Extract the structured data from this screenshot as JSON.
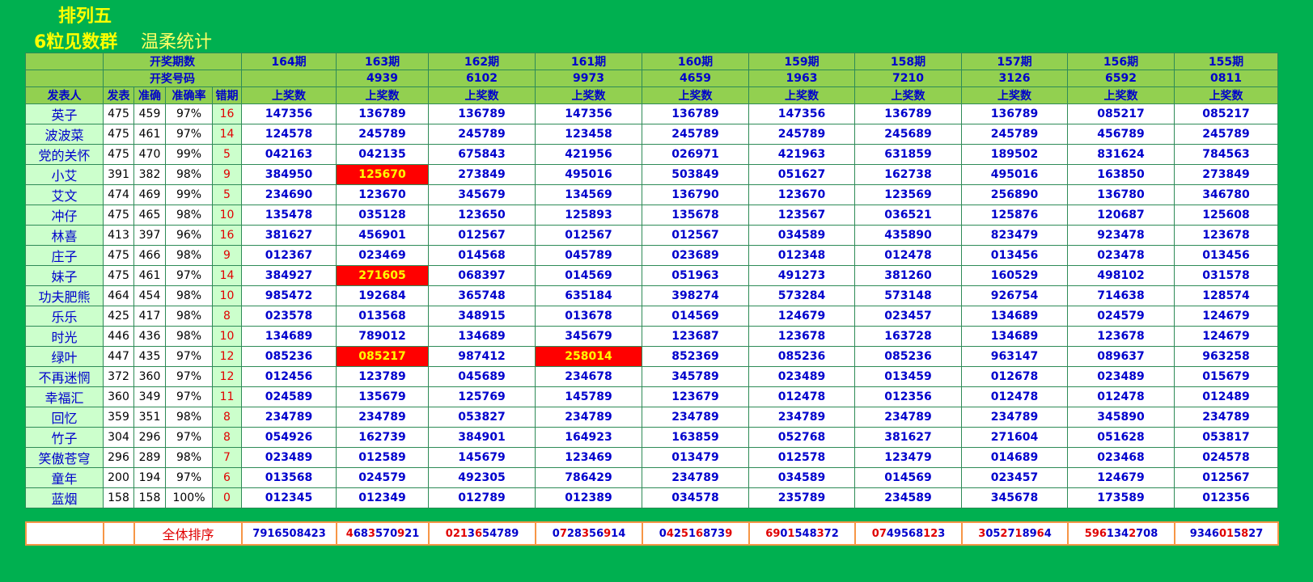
{
  "header": {
    "title": "排列五",
    "subtitle": "6粒见数群",
    "author": "温柔统计"
  },
  "table": {
    "labels": {
      "period_count": "开奖期数",
      "draw_number": "开奖号码",
      "prize_count": "上奖数"
    },
    "columns": [
      "发表人",
      "发表",
      "准确",
      "准确率",
      "错期"
    ],
    "periods": [
      "164期",
      "163期",
      "162期",
      "161期",
      "160期",
      "159期",
      "158期",
      "157期",
      "156期",
      "155期"
    ],
    "draws": [
      null,
      "4939",
      "6102",
      "9973",
      "4659",
      "1963",
      "7210",
      "3126",
      "6592",
      "0811"
    ],
    "rows": [
      {
        "name": "英子",
        "posts": 475,
        "correct": 459,
        "rate": "97%",
        "miss": 16,
        "picks": [
          "147356",
          "136789",
          "136789",
          "147356",
          "136789",
          "147356",
          "136789",
          "136789",
          "085217",
          "085217"
        ]
      },
      {
        "name": "波波菜",
        "posts": 475,
        "correct": 461,
        "rate": "97%",
        "miss": 14,
        "picks": [
          "124578",
          "245789",
          "245789",
          "123458",
          "245789",
          "245789",
          "245689",
          "245789",
          "456789",
          "245789"
        ]
      },
      {
        "name": "党的关怀",
        "posts": 475,
        "correct": 470,
        "rate": "99%",
        "miss": 5,
        "picks": [
          "042163",
          "042135",
          "675843",
          "421956",
          "026971",
          "421963",
          "631859",
          "189502",
          "831624",
          "784563"
        ]
      },
      {
        "name": "小艾",
        "posts": 391,
        "correct": 382,
        "rate": "98%",
        "miss": 9,
        "picks": [
          "384950",
          "125670",
          "273849",
          "495016",
          "503849",
          "051627",
          "162738",
          "495016",
          "163850",
          "273849"
        ]
      },
      {
        "name": "艾文",
        "posts": 474,
        "correct": 469,
        "rate": "99%",
        "miss": 5,
        "picks": [
          "234690",
          "123670",
          "345679",
          "134569",
          "136790",
          "123670",
          "123569",
          "256890",
          "136780",
          "346780"
        ]
      },
      {
        "name": "冲仔",
        "posts": 475,
        "correct": 465,
        "rate": "98%",
        "miss": 10,
        "picks": [
          "135478",
          "035128",
          "123650",
          "125893",
          "135678",
          "123567",
          "036521",
          "125876",
          "120687",
          "125608"
        ]
      },
      {
        "name": "林喜",
        "posts": 413,
        "correct": 397,
        "rate": "96%",
        "miss": 16,
        "picks": [
          "381627",
          "456901",
          "012567",
          "012567",
          "012567",
          "034589",
          "435890",
          "823479",
          "923478",
          "123678"
        ]
      },
      {
        "name": "庄子",
        "posts": 475,
        "correct": 466,
        "rate": "98%",
        "miss": 9,
        "picks": [
          "012367",
          "023469",
          "014568",
          "045789",
          "023689",
          "012348",
          "012478",
          "013456",
          "023478",
          "013456"
        ]
      },
      {
        "name": "妹子",
        "posts": 475,
        "correct": 461,
        "rate": "97%",
        "miss": 14,
        "picks": [
          "384927",
          "271605",
          "068397",
          "014569",
          "051963",
          "491273",
          "381260",
          "160529",
          "498102",
          "031578"
        ]
      },
      {
        "name": "功夫肥熊",
        "posts": 464,
        "correct": 454,
        "rate": "98%",
        "miss": 10,
        "picks": [
          "985472",
          "192684",
          "365748",
          "635184",
          "398274",
          "573284",
          "573148",
          "926754",
          "714638",
          "128574"
        ]
      },
      {
        "name": "乐乐",
        "posts": 425,
        "correct": 417,
        "rate": "98%",
        "miss": 8,
        "picks": [
          "023578",
          "013568",
          "348915",
          "013678",
          "014569",
          "124679",
          "023457",
          "134689",
          "024579",
          "124679"
        ]
      },
      {
        "name": "时光",
        "posts": 446,
        "correct": 436,
        "rate": "98%",
        "miss": 10,
        "picks": [
          "134689",
          "789012",
          "134689",
          "345679",
          "123687",
          "123678",
          "163728",
          "134689",
          "123678",
          "124679"
        ]
      },
      {
        "name": "绿叶",
        "posts": 447,
        "correct": 435,
        "rate": "97%",
        "miss": 12,
        "picks": [
          "085236",
          "085217",
          "987412",
          "258014",
          "852369",
          "085236",
          "085236",
          "963147",
          "089637",
          "963258"
        ]
      },
      {
        "name": "不再迷惘",
        "posts": 372,
        "correct": 360,
        "rate": "97%",
        "miss": 12,
        "picks": [
          "012456",
          "123789",
          "045689",
          "234678",
          "345789",
          "023489",
          "013459",
          "012678",
          "023489",
          "015679"
        ]
      },
      {
        "name": "幸福汇",
        "posts": 360,
        "correct": 349,
        "rate": "97%",
        "miss": 11,
        "picks": [
          "024589",
          "135679",
          "125769",
          "145789",
          "123679",
          "012478",
          "012356",
          "012478",
          "012478",
          "012489"
        ]
      },
      {
        "name": "回忆",
        "posts": 359,
        "correct": 351,
        "rate": "98%",
        "miss": 8,
        "picks": [
          "234789",
          "234789",
          "053827",
          "234789",
          "234789",
          "234789",
          "234789",
          "234789",
          "345890",
          "234789"
        ]
      },
      {
        "name": "竹子",
        "posts": 304,
        "correct": 296,
        "rate": "97%",
        "miss": 8,
        "picks": [
          "054926",
          "162739",
          "384901",
          "164923",
          "163859",
          "052768",
          "381627",
          "271604",
          "051628",
          "053817"
        ]
      },
      {
        "name": "笑傲苍穹",
        "posts": 296,
        "correct": 289,
        "rate": "98%",
        "miss": 7,
        "picks": [
          "023489",
          "012589",
          "145679",
          "123469",
          "013479",
          "012578",
          "123479",
          "014689",
          "023468",
          "024578"
        ]
      },
      {
        "name": "童年",
        "posts": 200,
        "correct": 194,
        "rate": "97%",
        "miss": 6,
        "picks": [
          "013568",
          "024579",
          "492305",
          "786429",
          "234789",
          "034589",
          "014569",
          "023457",
          "124679",
          "012567"
        ]
      },
      {
        "name": "蓝烟",
        "posts": 158,
        "correct": 158,
        "rate": "100%",
        "miss": 0,
        "picks": [
          "012345",
          "012349",
          "012789",
          "012389",
          "034578",
          "235789",
          "234589",
          "345678",
          "173589",
          "012356"
        ]
      }
    ],
    "highlighted": [
      [
        3,
        1
      ],
      [
        8,
        1
      ],
      [
        12,
        1
      ],
      [
        12,
        3
      ]
    ]
  },
  "footer": {
    "label": "全体排序",
    "orders": [
      "7916508423",
      "4683570921",
      "0213654789",
      "0728356914",
      "0425168739",
      "6901548372",
      "0749568123",
      "3052718964",
      "5961342708",
      "9346015827"
    ]
  }
}
